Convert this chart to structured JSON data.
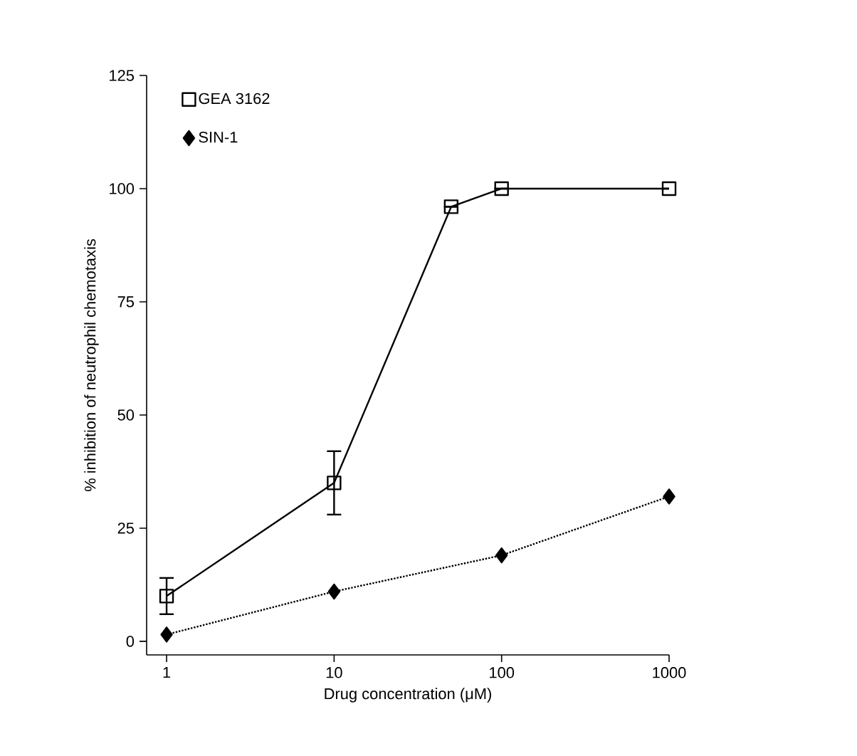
{
  "chart_data": {
    "type": "line",
    "xlabel": "Drug concentration (μM)",
    "ylabel": "% inhibition of neutrophil chemotaxis",
    "log": "x",
    "xlim": [
      0.76,
      1000
    ],
    "ylim": [
      -3,
      125
    ],
    "xticks": [
      1,
      10,
      100,
      1000
    ],
    "yticks": [
      0,
      25,
      50,
      75,
      100,
      125
    ],
    "grid": false,
    "legend": "top left",
    "series": [
      {
        "name": "GEA 3162",
        "color": "#000000",
        "marker": "square",
        "line_style": "solid",
        "x": [
          1,
          10,
          50,
          100,
          1000
        ],
        "values": [
          10,
          35,
          96,
          100,
          100
        ],
        "errors": [
          4,
          7,
          null,
          null,
          null
        ]
      },
      {
        "name": "SIN-1",
        "color": "#000000",
        "marker": "diamond",
        "line_style": "dotted",
        "x": [
          1,
          10,
          100,
          1000
        ],
        "values": [
          1.5,
          11,
          19,
          32
        ]
      }
    ]
  }
}
